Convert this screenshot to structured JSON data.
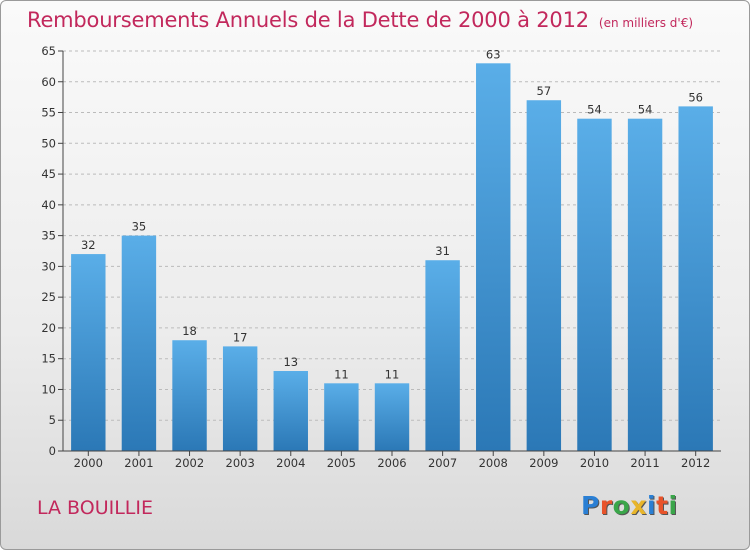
{
  "title": "Remboursements Annuels de la Dette de 2000 à 2012",
  "unit": "(en milliers d'€)",
  "place": "LA BOUILLIE",
  "logo": {
    "text": "Proxiti",
    "letter_colors": [
      "#2a7fd4",
      "#e8532a",
      "#3aa64a",
      "#e8b52a",
      "#2a7fd4",
      "#e8532a",
      "#3aa64a"
    ]
  },
  "colors": {
    "title": "#c2285c",
    "bar_top": "#5aaee8",
    "bar_bottom": "#2b78b6",
    "axis": "#444444",
    "grid": "#bbbbbb"
  },
  "chart_data": {
    "type": "bar",
    "title": "Remboursements Annuels de la Dette de 2000 à 2012",
    "xlabel": "",
    "ylabel": "",
    "categories": [
      "2000",
      "2001",
      "2002",
      "2003",
      "2004",
      "2005",
      "2006",
      "2007",
      "2008",
      "2009",
      "2010",
      "2011",
      "2012"
    ],
    "values": [
      32,
      35,
      18,
      17,
      13,
      11,
      11,
      31,
      63,
      57,
      54,
      54,
      56
    ],
    "ylim": [
      0,
      65
    ],
    "yticks": [
      0,
      5,
      10,
      15,
      20,
      25,
      30,
      35,
      40,
      45,
      50,
      55,
      60,
      65
    ],
    "grid": "horizontal dashed",
    "data_labels": true
  }
}
